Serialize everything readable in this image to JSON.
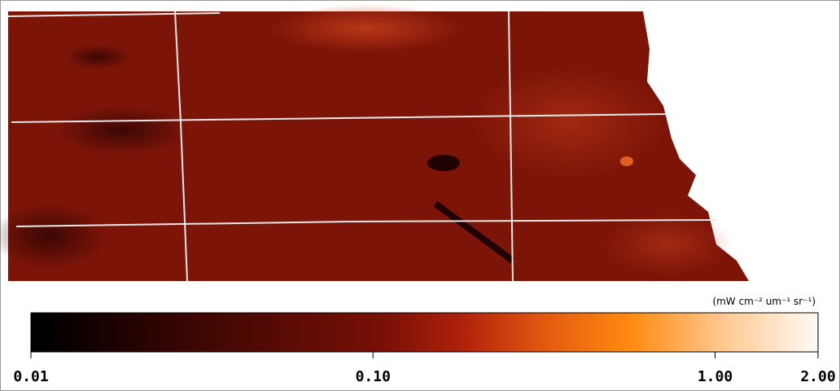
{
  "colorbar": {
    "unit_label": "(mW cm⁻² um⁻¹ sr⁻¹)",
    "scale": "log",
    "lim": [
      0.01,
      2
    ],
    "ticks": [
      {
        "value": 0.01,
        "label": "0.01"
      },
      {
        "value": 0.1,
        "label": "0.10"
      },
      {
        "value": 1,
        "label": "1.00"
      },
      {
        "value": 2,
        "label": "2.00"
      }
    ]
  }
}
